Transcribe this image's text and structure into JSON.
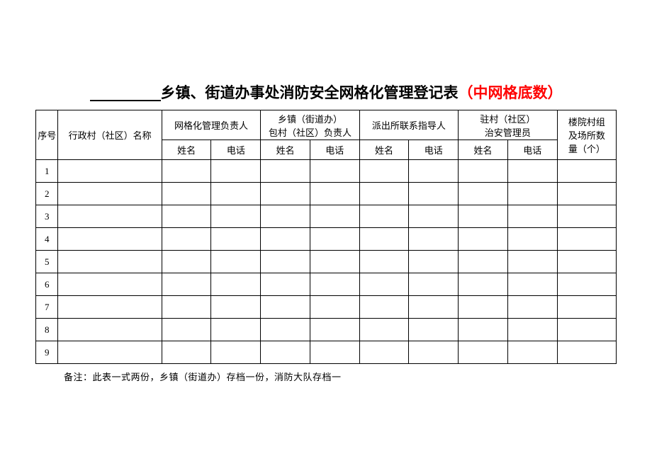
{
  "title": {
    "blank_prefix": " ",
    "main": "乡镇、街道办事处消防安全网格化管理登记表",
    "suffix": "（中网格底数）",
    "title_color": "#000000",
    "suffix_color": "#ff0000",
    "font_size_pt": 16
  },
  "table": {
    "border_color": "#000000",
    "background_color": "#ffffff",
    "text_color": "#000000",
    "font_size_pt": 10,
    "columns": {
      "seq": "序号",
      "village_name": "行政村（社区）名称",
      "grid_manager": "网格化管理负责人",
      "township_manager_line1": "乡镇（街道办）",
      "township_manager_line2": "包村（社区）负责人",
      "police_contact": "派出所联系指导人",
      "security_manager_line1": "驻村（社区）",
      "security_manager_line2": "治安管理员",
      "count_line1": "楼院村组",
      "count_line2": "及场所数",
      "count_line3": "量（个）",
      "sub_name": "姓名",
      "sub_phone": "电话"
    },
    "row_numbers": [
      "1",
      "2",
      "3",
      "4",
      "5",
      "6",
      "7",
      "8",
      "9"
    ],
    "rows": [
      {
        "seq": "1",
        "village": "",
        "gm_name": "",
        "gm_phone": "",
        "tm_name": "",
        "tm_phone": "",
        "pc_name": "",
        "pc_phone": "",
        "sm_name": "",
        "sm_phone": "",
        "count": ""
      },
      {
        "seq": "2",
        "village": "",
        "gm_name": "",
        "gm_phone": "",
        "tm_name": "",
        "tm_phone": "",
        "pc_name": "",
        "pc_phone": "",
        "sm_name": "",
        "sm_phone": "",
        "count": ""
      },
      {
        "seq": "3",
        "village": "",
        "gm_name": "",
        "gm_phone": "",
        "tm_name": "",
        "tm_phone": "",
        "pc_name": "",
        "pc_phone": "",
        "sm_name": "",
        "sm_phone": "",
        "count": ""
      },
      {
        "seq": "4",
        "village": "",
        "gm_name": "",
        "gm_phone": "",
        "tm_name": "",
        "tm_phone": "",
        "pc_name": "",
        "pc_phone": "",
        "sm_name": "",
        "sm_phone": "",
        "count": ""
      },
      {
        "seq": "5",
        "village": "",
        "gm_name": "",
        "gm_phone": "",
        "tm_name": "",
        "tm_phone": "",
        "pc_name": "",
        "pc_phone": "",
        "sm_name": "",
        "sm_phone": "",
        "count": ""
      },
      {
        "seq": "6",
        "village": "",
        "gm_name": "",
        "gm_phone": "",
        "tm_name": "",
        "tm_phone": "",
        "pc_name": "",
        "pc_phone": "",
        "sm_name": "",
        "sm_phone": "",
        "count": ""
      },
      {
        "seq": "7",
        "village": "",
        "gm_name": "",
        "gm_phone": "",
        "tm_name": "",
        "tm_phone": "",
        "pc_name": "",
        "pc_phone": "",
        "sm_name": "",
        "sm_phone": "",
        "count": ""
      },
      {
        "seq": "8",
        "village": "",
        "gm_name": "",
        "gm_phone": "",
        "tm_name": "",
        "tm_phone": "",
        "pc_name": "",
        "pc_phone": "",
        "sm_name": "",
        "sm_phone": "",
        "count": ""
      },
      {
        "seq": "9",
        "village": "",
        "gm_name": "",
        "gm_phone": "",
        "tm_name": "",
        "tm_phone": "",
        "pc_name": "",
        "pc_phone": "",
        "sm_name": "",
        "sm_phone": "",
        "count": ""
      }
    ]
  },
  "footnote": "备注：此表一式两份，乡镇（街道办）存档一份，消防大队存档一"
}
